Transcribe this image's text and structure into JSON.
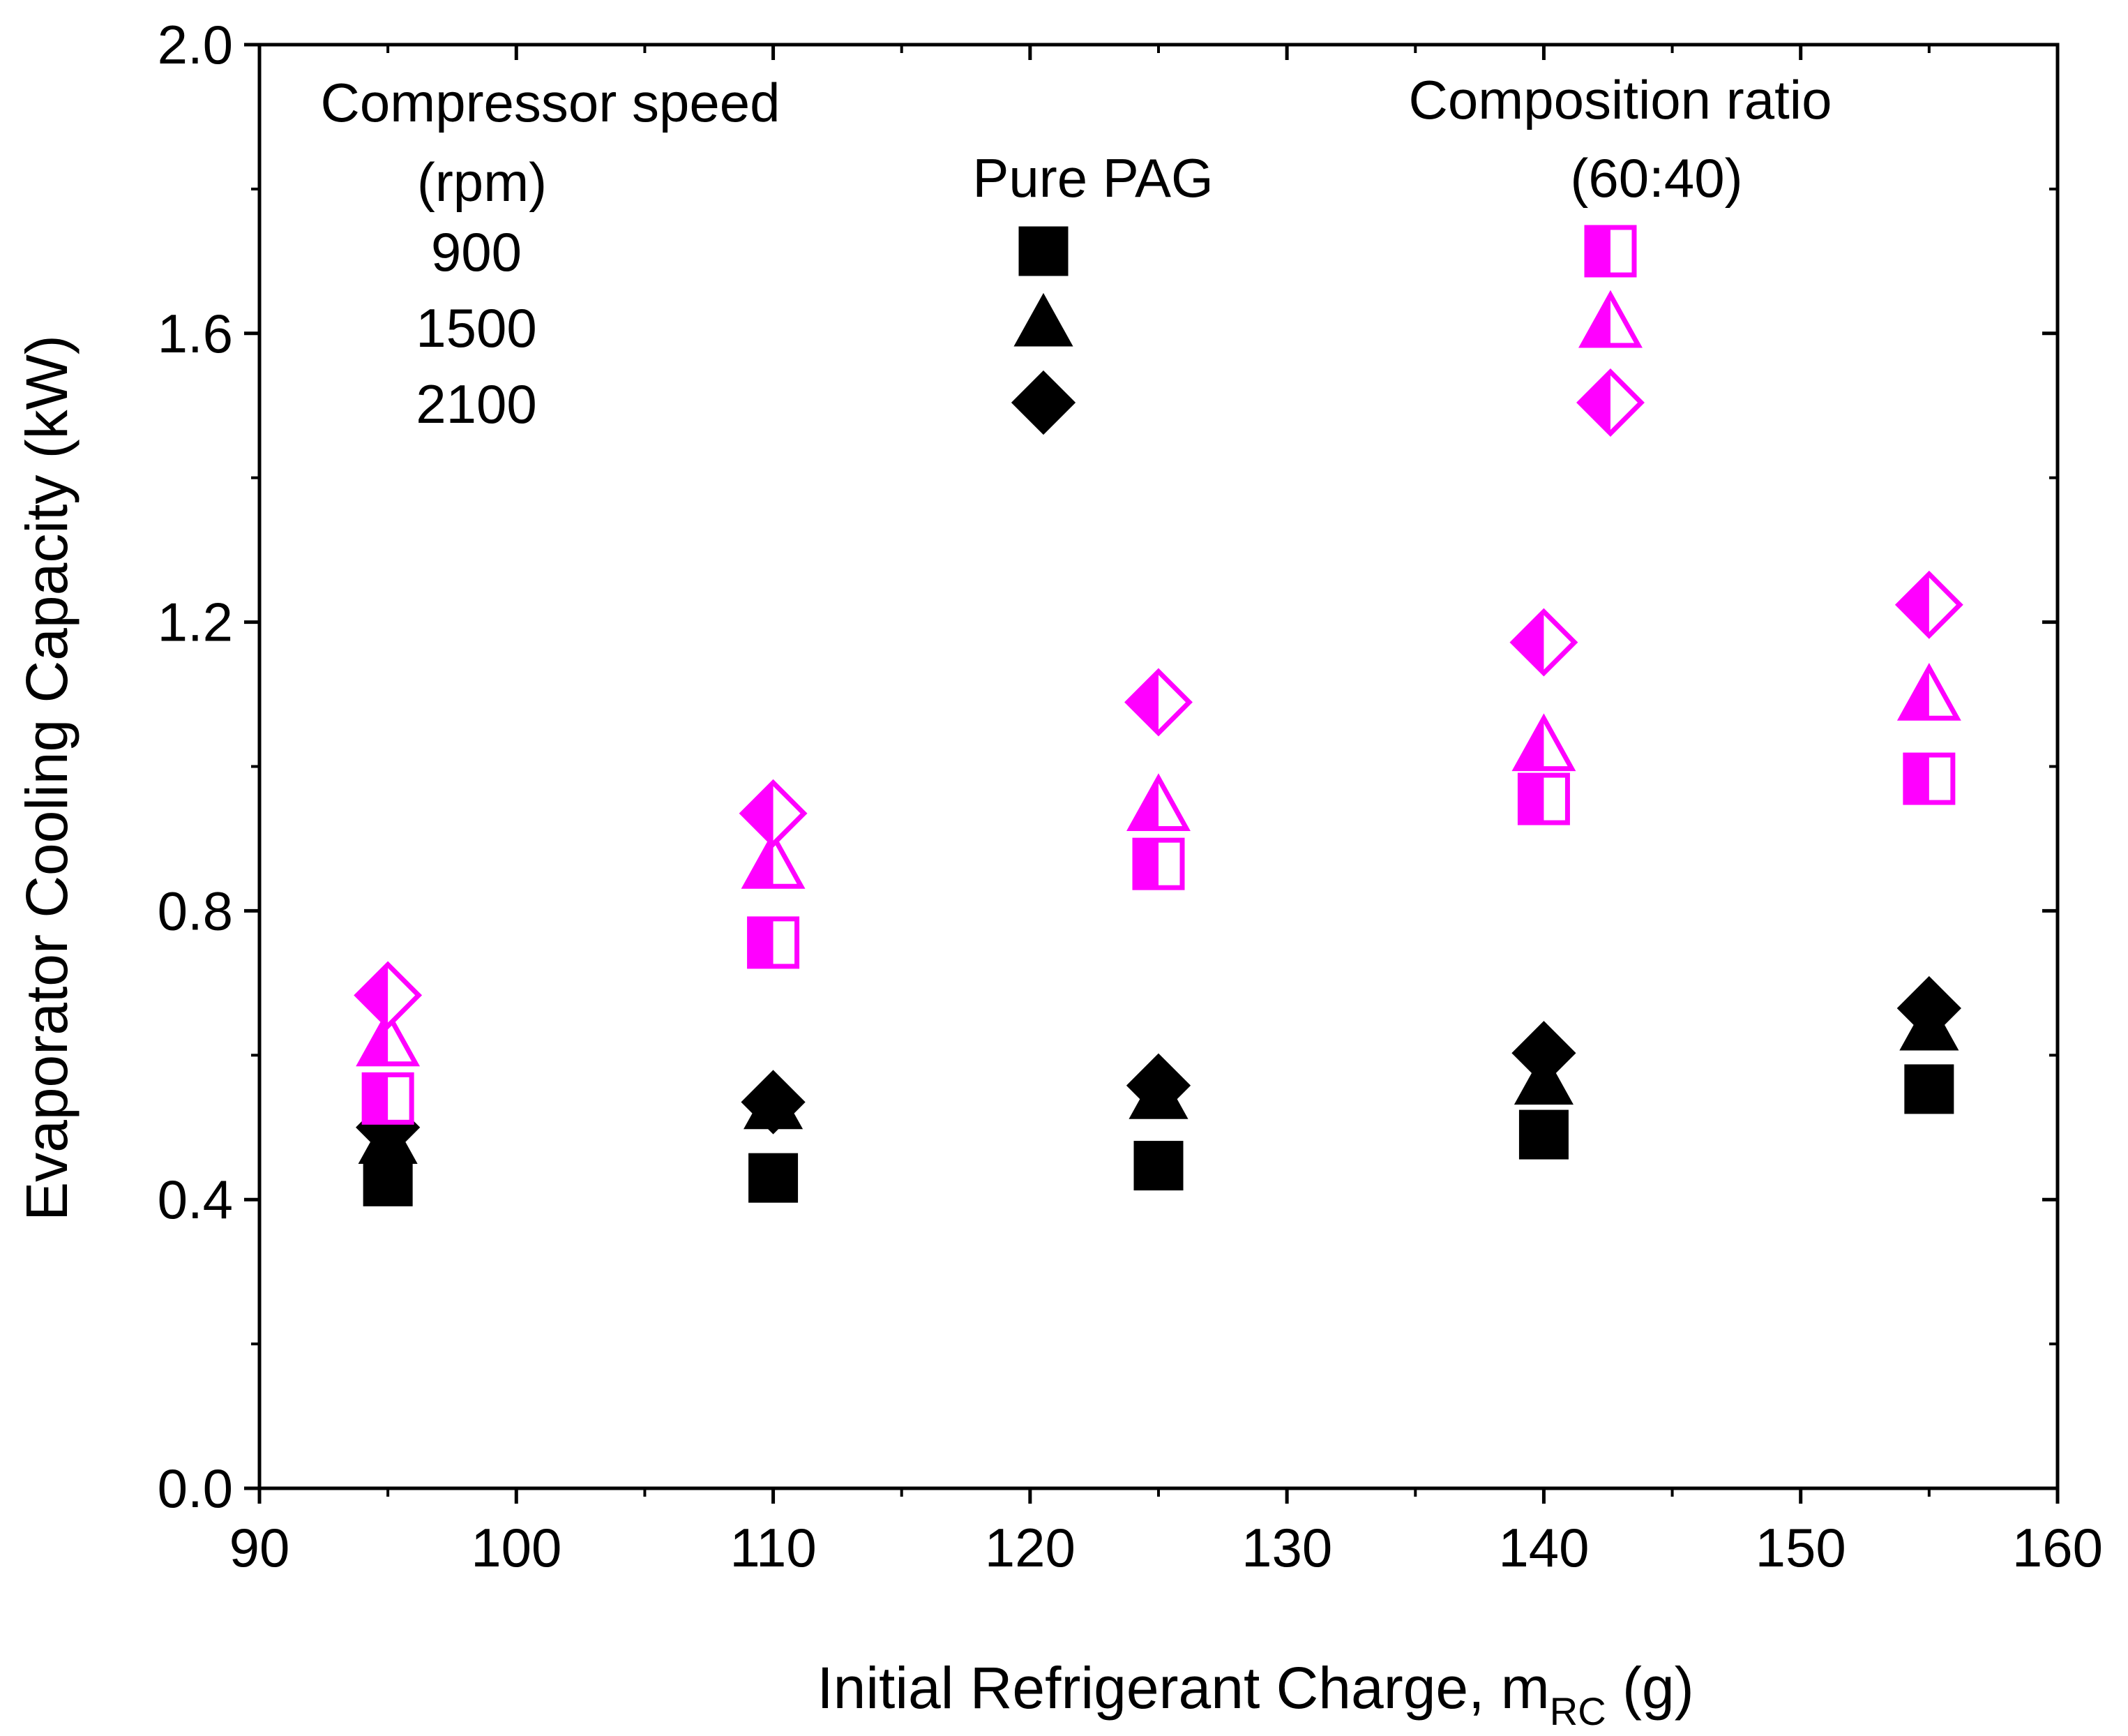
{
  "chart_data": {
    "type": "scatter",
    "title": "",
    "xlabel": "Initial Refrigerant Charge, m",
    "xlabel_sub": "RC",
    "xlabel_unit": " (g)",
    "ylabel": "Evaporator Cooling Capacity (kW)",
    "xlim": [
      90,
      160
    ],
    "ylim": [
      0.0,
      2.0
    ],
    "x_ticks": [
      90,
      100,
      110,
      120,
      130,
      140,
      150,
      160
    ],
    "x_tick_labels": [
      "90",
      "100",
      "110",
      "120",
      "130",
      "140",
      "150",
      "160"
    ],
    "y_ticks": [
      0.0,
      0.4,
      0.8,
      1.2,
      1.6,
      2.0
    ],
    "y_tick_labels": [
      "0.0",
      "0.4",
      "0.8",
      "1.2",
      "1.6",
      "2.0"
    ],
    "grid": false,
    "x": [
      95,
      110,
      125,
      140,
      155
    ],
    "series": [
      {
        "name": "Pure PAG 900 rpm",
        "group": "Pure PAG",
        "speed": "900",
        "marker": "square",
        "style": "filled",
        "color": "#000000",
        "values": [
          0.425,
          0.43,
          0.447,
          0.49,
          0.553
        ]
      },
      {
        "name": "Pure PAG 1500 rpm",
        "group": "Pure PAG",
        "speed": "1500",
        "marker": "triangle",
        "style": "filled",
        "color": "#000000",
        "values": [
          0.48,
          0.528,
          0.542,
          0.562,
          0.637
        ]
      },
      {
        "name": "Pure PAG 2100 rpm",
        "group": "Pure PAG",
        "speed": "2100",
        "marker": "diamond",
        "style": "filled",
        "color": "#000000",
        "values": [
          0.5,
          0.535,
          0.558,
          0.603,
          0.665
        ]
      },
      {
        "name": "Composition ratio (60:40) 900 rpm",
        "group": "Composition ratio (60:40)",
        "speed": "900",
        "marker": "square",
        "style": "half",
        "color": "#ff00ff",
        "values": [
          0.54,
          0.756,
          0.865,
          0.955,
          0.983
        ]
      },
      {
        "name": "Composition ratio (60:40) 1500 rpm",
        "group": "Composition ratio (60:40)",
        "speed": "1500",
        "marker": "triangle",
        "style": "half",
        "color": "#ff00ff",
        "values": [
          0.617,
          0.863,
          0.943,
          1.026,
          1.096
        ]
      },
      {
        "name": "Composition ratio (60:40) 2100 rpm",
        "group": "Composition ratio (60:40)",
        "speed": "2100",
        "marker": "diamond",
        "style": "half",
        "color": "#ff00ff",
        "values": [
          0.683,
          0.935,
          1.089,
          1.172,
          1.224
        ]
      }
    ],
    "legend": {
      "placement": "top-inside",
      "speed_header_line1": "Compressor speed",
      "speed_header_line2": "(rpm)",
      "speeds": [
        "900",
        "1500",
        "2100"
      ],
      "group1_header": "Pure PAG",
      "group2_header_line1": "Composition ratio",
      "group2_header_line2": "(60:40)"
    }
  }
}
